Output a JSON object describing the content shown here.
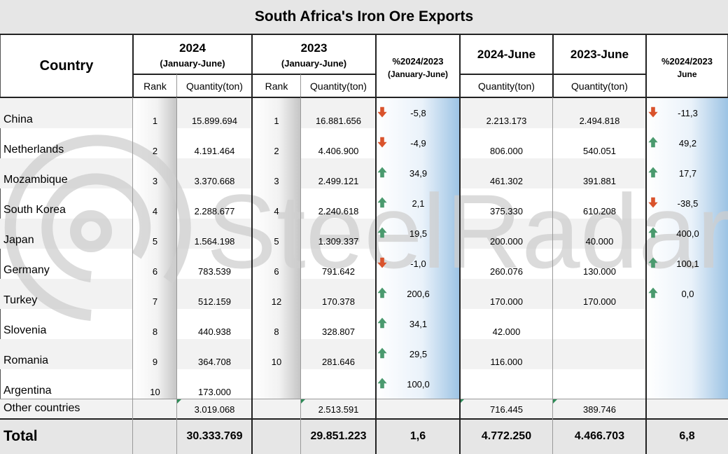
{
  "title": "South Africa's Iron Ore Exports",
  "watermark": "SteelRadar",
  "headers": {
    "country": "Country",
    "y2024": "2024",
    "y2024_period": "(January-June)",
    "y2023": "2023",
    "y2023_period": "(January-June)",
    "pct_period": "%2024/2023",
    "pct_period_sub": "(January-June)",
    "june2024": "2024-June",
    "june2023": "2023-June",
    "pct_june": "%2024/2023",
    "pct_june_sub": "June",
    "rank": "Rank",
    "quantity": "Quantity(ton)"
  },
  "rows": [
    {
      "country": "China",
      "r24": "1",
      "q24": "15.899.694",
      "r23": "1",
      "q23": "16.881.656",
      "pct": "-5,8",
      "pct_dir": "down",
      "j24": "2.213.173",
      "j23": "2.494.818",
      "pctj": "-11,3",
      "pctj_dir": "down"
    },
    {
      "country": "Netherlands",
      "r24": "2",
      "q24": "4.191.464",
      "r23": "2",
      "q23": "4.406.900",
      "pct": "-4,9",
      "pct_dir": "down",
      "j24": "806.000",
      "j23": "540.051",
      "pctj": "49,2",
      "pctj_dir": "up"
    },
    {
      "country": "Mozambique",
      "r24": "3",
      "q24": "3.370.668",
      "r23": "3",
      "q23": "2.499.121",
      "pct": "34,9",
      "pct_dir": "up",
      "j24": "461.302",
      "j23": "391.881",
      "pctj": "17,7",
      "pctj_dir": "up"
    },
    {
      "country": "South Korea",
      "r24": "4",
      "q24": "2.288.677",
      "r23": "4",
      "q23": "2.240.618",
      "pct": "2,1",
      "pct_dir": "up",
      "j24": "375.330",
      "j23": "610.208",
      "pctj": "-38,5",
      "pctj_dir": "down"
    },
    {
      "country": "Japan",
      "r24": "5",
      "q24": "1.564.198",
      "r23": "5",
      "q23": "1.309.337",
      "pct": "19,5",
      "pct_dir": "up",
      "j24": "200.000",
      "j23": "40.000",
      "pctj": "400,0",
      "pctj_dir": "up"
    },
    {
      "country": "Germany",
      "r24": "6",
      "q24": "783.539",
      "r23": "6",
      "q23": "791.642",
      "pct": "-1,0",
      "pct_dir": "down",
      "j24": "260.076",
      "j23": "130.000",
      "pctj": "100,1",
      "pctj_dir": "up"
    },
    {
      "country": "Turkey",
      "r24": "7",
      "q24": "512.159",
      "r23": "12",
      "q23": "170.378",
      "pct": "200,6",
      "pct_dir": "up",
      "j24": "170.000",
      "j23": "170.000",
      "pctj": "0,0",
      "pctj_dir": "up"
    },
    {
      "country": "Slovenia",
      "r24": "8",
      "q24": "440.938",
      "r23": "8",
      "q23": "328.807",
      "pct": "34,1",
      "pct_dir": "up",
      "j24": "42.000",
      "j23": "",
      "pctj": "",
      "pctj_dir": ""
    },
    {
      "country": "Romania",
      "r24": "9",
      "q24": "364.708",
      "r23": "10",
      "q23": "281.646",
      "pct": "29,5",
      "pct_dir": "up",
      "j24": "116.000",
      "j23": "",
      "pctj": "",
      "pctj_dir": ""
    },
    {
      "country": "Argentina",
      "r24": "10",
      "q24": "173.000",
      "r23": "",
      "q23": "",
      "pct": "100,0",
      "pct_dir": "up",
      "j24": "",
      "j23": "",
      "pctj": "",
      "pctj_dir": ""
    }
  ],
  "other": {
    "label": "Other countries",
    "q24": "3.019.068",
    "q23": "2.513.591",
    "j24": "716.445",
    "j23": "389.746"
  },
  "total": {
    "label": "Total",
    "q24": "30.333.769",
    "q23": "29.851.223",
    "pct": "1,6",
    "j24": "4.772.250",
    "j23": "4.466.703",
    "pctj": "6,8"
  },
  "colors": {
    "up": "#4a9a6e",
    "down": "#d9532c",
    "accent_blue": "#9cc3e4"
  }
}
